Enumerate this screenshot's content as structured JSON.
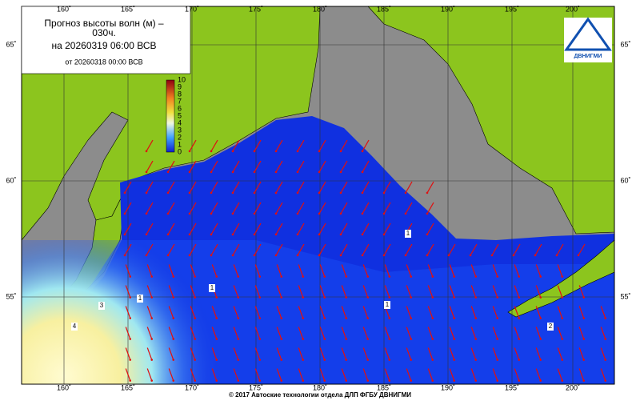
{
  "header": {
    "title_line1": "Прогноз высоты волн (м) –",
    "title_line2": "030ч.",
    "forecast_time": "на 20260319 06:00 ВСВ",
    "issued_time": "от 20260318 00:00 ВСВ"
  },
  "colorbar": {
    "labels": [
      "10",
      "9",
      "8",
      "7",
      "6",
      "5",
      "4",
      "3",
      "2",
      "1",
      "0"
    ]
  },
  "lon_labels": [
    "160˚",
    "165˚",
    "170˚",
    "175˚",
    "180˚",
    "185˚",
    "190˚",
    "195˚",
    "200˚"
  ],
  "lat_labels": [
    "65˚",
    "60˚",
    "55˚"
  ],
  "contour_labels": [
    "1",
    "1",
    "1",
    "1",
    "2",
    "3",
    "4"
  ],
  "logo_text": "ДВНИГМИ",
  "footer": "© 2017 Автоские технологии отдела ДЛП ФГБУ ДВНИГМИ"
}
